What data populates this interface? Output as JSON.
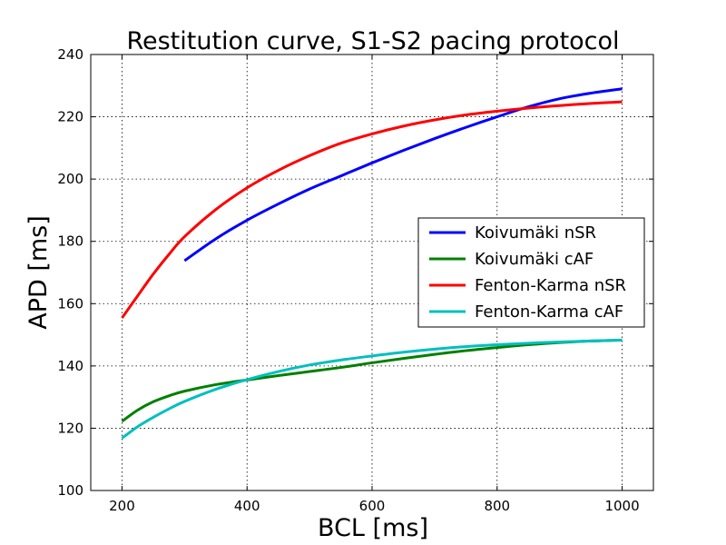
{
  "chart_data": {
    "type": "line",
    "title": "Restitution curve, S1-S2 pacing protocol",
    "xlabel": "BCL [ms]",
    "ylabel": "APD [ms]",
    "xlim": [
      150,
      1050
    ],
    "ylim": [
      100,
      240
    ],
    "xticks": [
      200,
      400,
      600,
      800,
      1000
    ],
    "yticks": [
      100,
      120,
      140,
      160,
      180,
      200,
      220,
      240
    ],
    "xtick_labels": [
      "200",
      "400",
      "600",
      "800",
      "1000"
    ],
    "ytick_labels": [
      "100",
      "120",
      "140",
      "160",
      "180",
      "200",
      "220",
      "240"
    ],
    "grid": true,
    "legend_position": "center-right",
    "series": [
      {
        "name": "Koivumäki nSR",
        "color": "#0000ff",
        "x": [
          300,
          350,
          400,
          450,
          500,
          550,
          600,
          650,
          700,
          750,
          800,
          850,
          900,
          950,
          1000
        ],
        "y": [
          173.8,
          180.8,
          186.8,
          192.0,
          196.8,
          201.0,
          205.2,
          209.2,
          213.0,
          216.6,
          220.0,
          223.2,
          225.8,
          227.6,
          229.0
        ]
      },
      {
        "name": "Koivumäki cAF",
        "color": "#008000",
        "x": [
          200,
          225,
          250,
          275,
          300,
          350,
          400,
          450,
          500,
          550,
          600,
          650,
          700,
          750,
          800,
          850,
          900,
          950,
          1000
        ],
        "y": [
          122.2,
          125.8,
          128.5,
          130.4,
          131.9,
          134.0,
          135.5,
          136.9,
          138.2,
          139.5,
          141.0,
          142.4,
          143.7,
          144.9,
          145.9,
          146.8,
          147.5,
          148.0,
          148.3
        ]
      },
      {
        "name": "Fenton-Karma nSR",
        "color": "#ff0000",
        "x": [
          200,
          225,
          250,
          275,
          300,
          350,
          400,
          450,
          500,
          550,
          600,
          650,
          700,
          750,
          800,
          850,
          900,
          950,
          1000
        ],
        "y": [
          155.4,
          162.5,
          169.5,
          175.8,
          181.5,
          190.2,
          197.2,
          202.8,
          207.5,
          211.5,
          214.5,
          217.0,
          219.0,
          220.6,
          221.8,
          222.8,
          223.6,
          224.3,
          224.8
        ]
      },
      {
        "name": "Fenton-Karma cAF",
        "color": "#00bfbf",
        "x": [
          200,
          225,
          250,
          275,
          300,
          350,
          400,
          450,
          500,
          550,
          600,
          650,
          700,
          750,
          800,
          850,
          900,
          950,
          1000
        ],
        "y": [
          116.8,
          120.5,
          123.5,
          126.2,
          128.6,
          132.5,
          135.6,
          138.2,
          140.3,
          141.9,
          143.2,
          144.4,
          145.4,
          146.2,
          146.8,
          147.3,
          147.7,
          148.0,
          148.3
        ]
      }
    ]
  }
}
